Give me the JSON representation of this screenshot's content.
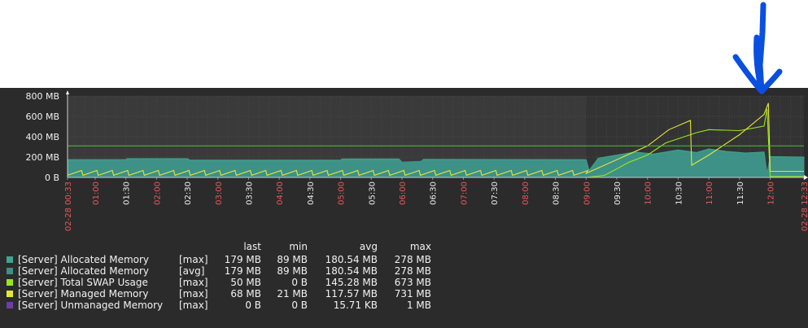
{
  "chart_data": {
    "type": "line",
    "title": "",
    "xlabel": "",
    "ylabel": "",
    "ylim": [
      0,
      800
    ],
    "y_ticks": [
      {
        "value": 0,
        "label": "0 B"
      },
      {
        "value": 200,
        "label": "200 MB"
      },
      {
        "value": 400,
        "label": "400 MB"
      },
      {
        "value": 600,
        "label": "600 MB"
      },
      {
        "value": 800,
        "label": "800 MB"
      }
    ],
    "x_range_hours": [
      0.55,
      12.55
    ],
    "x_ticks": [
      {
        "t": 0.55,
        "label": "02-28 00:33",
        "red": true
      },
      {
        "t": 1.0,
        "label": "01:00",
        "red": true
      },
      {
        "t": 1.5,
        "label": "01:30",
        "red": false
      },
      {
        "t": 2.0,
        "label": "02:00",
        "red": true
      },
      {
        "t": 2.5,
        "label": "02:30",
        "red": false
      },
      {
        "t": 3.0,
        "label": "03:00",
        "red": true
      },
      {
        "t": 3.5,
        "label": "03:30",
        "red": false
      },
      {
        "t": 4.0,
        "label": "04:00",
        "red": true
      },
      {
        "t": 4.5,
        "label": "04:30",
        "red": false
      },
      {
        "t": 5.0,
        "label": "05:00",
        "red": true
      },
      {
        "t": 5.5,
        "label": "05:30",
        "red": false
      },
      {
        "t": 6.0,
        "label": "06:00",
        "red": true
      },
      {
        "t": 6.5,
        "label": "06:30",
        "red": false
      },
      {
        "t": 7.0,
        "label": "07:00",
        "red": true
      },
      {
        "t": 7.5,
        "label": "07:30",
        "red": false
      },
      {
        "t": 8.0,
        "label": "08:00",
        "red": true
      },
      {
        "t": 8.5,
        "label": "08:30",
        "red": false
      },
      {
        "t": 9.0,
        "label": "09:00",
        "red": true
      },
      {
        "t": 9.5,
        "label": "09:30",
        "red": false
      },
      {
        "t": 10.0,
        "label": "10:00",
        "red": true
      },
      {
        "t": 10.5,
        "label": "10:30",
        "red": false
      },
      {
        "t": 11.0,
        "label": "11:00",
        "red": true
      },
      {
        "t": 11.5,
        "label": "11:30",
        "red": false
      },
      {
        "t": 12.0,
        "label": "12:00",
        "red": true
      },
      {
        "t": 12.55,
        "label": "02-28 12:33",
        "red": true
      }
    ],
    "work_period_start_hour": 9.0,
    "threshold_mb": 310,
    "series": [
      {
        "name": "[Server] Allocated Memory",
        "function": "[max]",
        "color": "#3fa58f",
        "kind": "area",
        "points": [
          [
            0.55,
            175
          ],
          [
            1.5,
            175
          ],
          [
            1.52,
            185
          ],
          [
            2.5,
            185
          ],
          [
            2.55,
            170
          ],
          [
            5.0,
            170
          ],
          [
            5.02,
            182
          ],
          [
            5.95,
            182
          ],
          [
            6.0,
            150
          ],
          [
            6.3,
            150
          ],
          [
            6.35,
            178
          ],
          [
            9.0,
            175
          ],
          [
            9.05,
            70
          ],
          [
            9.2,
            190
          ],
          [
            9.5,
            220
          ],
          [
            9.8,
            250
          ],
          [
            10.1,
            230
          ],
          [
            10.5,
            270
          ],
          [
            10.8,
            245
          ],
          [
            11.0,
            280
          ],
          [
            11.3,
            255
          ],
          [
            11.6,
            240
          ],
          [
            11.9,
            250
          ],
          [
            11.95,
            40
          ],
          [
            12.0,
            205
          ],
          [
            12.55,
            200
          ]
        ]
      },
      {
        "name": "[Server] Allocated Memory",
        "function": "[avg]",
        "color": "#3f8f8a",
        "kind": "area",
        "points": [
          [
            0.55,
            160
          ],
          [
            2.5,
            160
          ],
          [
            2.55,
            150
          ],
          [
            6.0,
            150
          ],
          [
            6.35,
            160
          ],
          [
            9.0,
            155
          ],
          [
            9.05,
            60
          ],
          [
            9.5,
            190
          ],
          [
            10.0,
            200
          ],
          [
            10.5,
            230
          ],
          [
            11.0,
            240
          ],
          [
            11.5,
            225
          ],
          [
            11.9,
            210
          ],
          [
            11.95,
            35
          ],
          [
            12.0,
            180
          ],
          [
            12.55,
            180
          ]
        ]
      },
      {
        "name": "[Server] Total SWAP Usage",
        "function": "[max]",
        "color": "#96e81a",
        "kind": "line",
        "points": [
          [
            0.55,
            0
          ],
          [
            9.0,
            0
          ],
          [
            9.3,
            20
          ],
          [
            9.7,
            150
          ],
          [
            10.0,
            220
          ],
          [
            10.2,
            300
          ],
          [
            10.3,
            340
          ],
          [
            10.5,
            380
          ],
          [
            10.8,
            440
          ],
          [
            11.0,
            470
          ],
          [
            11.5,
            460
          ],
          [
            11.9,
            505
          ],
          [
            11.95,
            673
          ],
          [
            12.0,
            10
          ],
          [
            12.55,
            10
          ]
        ]
      },
      {
        "name": "[Server] Managed Memory",
        "function": "[max]",
        "color": "#e6e63a",
        "kind": "line",
        "sawtooth": true,
        "baseline_period_hours": 0.25,
        "baseline_min_mb": 21,
        "baseline_max_mb": 68,
        "points": [
          [
            9.0,
            40
          ],
          [
            10.0,
            310
          ],
          [
            10.35,
            470
          ],
          [
            10.7,
            560
          ],
          [
            10.72,
            120
          ],
          [
            11.0,
            220
          ],
          [
            11.5,
            420
          ],
          [
            11.9,
            620
          ],
          [
            11.97,
            731
          ],
          [
            12.0,
            60
          ],
          [
            12.55,
            60
          ]
        ]
      },
      {
        "name": "[Server] Unmanaged Memory",
        "function": "[max]",
        "color": "#6e3fa0",
        "kind": "line",
        "points": [
          [
            0.55,
            1
          ],
          [
            12.55,
            1
          ]
        ]
      }
    ]
  },
  "legend": {
    "headers": {
      "last": "last",
      "min": "min",
      "avg": "avg",
      "max": "max"
    },
    "rows": [
      {
        "color": "#3fa58f",
        "name": "[Server] Allocated Memory",
        "function": "[max]",
        "last": "179 MB",
        "min": "89 MB",
        "avg": "180.54 MB",
        "max": "278 MB"
      },
      {
        "color": "#3f8f8a",
        "name": "[Server] Allocated Memory",
        "function": "[avg]",
        "last": "179 MB",
        "min": "89 MB",
        "avg": "180.54 MB",
        "max": "278 MB"
      },
      {
        "color": "#96e81a",
        "name": "[Server] Total SWAP Usage",
        "function": "[max]",
        "last": "50 MB",
        "min": "0 B",
        "avg": "145.28 MB",
        "max": "673 MB"
      },
      {
        "color": "#e6e63a",
        "name": "[Server] Managed Memory",
        "function": "[max]",
        "last": "68 MB",
        "min": "21 MB",
        "avg": "117.57 MB",
        "max": "731 MB"
      },
      {
        "color": "#6e3fa0",
        "name": "[Server] Unmanaged Memory",
        "function": "[max]",
        "last": "0 B",
        "min": "0 B",
        "avg": "15.71 KB",
        "max": "1 MB"
      }
    ]
  },
  "annotation": {
    "kind": "hand-drawn arrow",
    "color": "#0a4fe0"
  }
}
